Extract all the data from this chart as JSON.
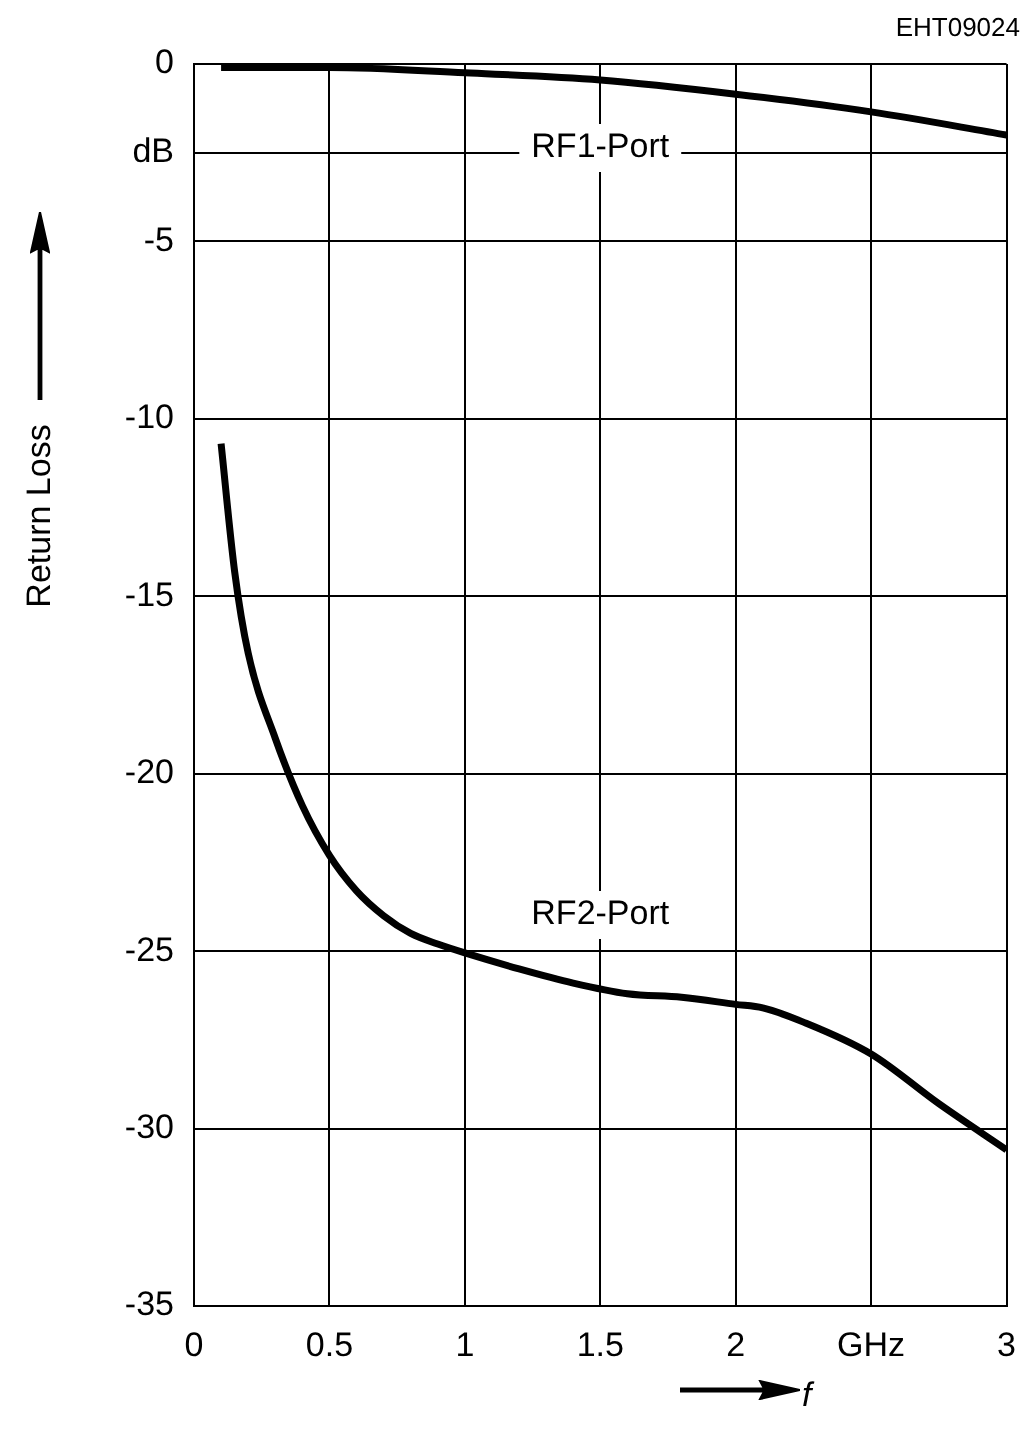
{
  "chart_data": {
    "type": "line",
    "ylabel": "Return Loss",
    "xlabel": "f",
    "annotations": [
      "EHT09024"
    ],
    "series": [
      {
        "name": "RF1-Port",
        "color": "#000000",
        "x": [
          0.1,
          0.5,
          1,
          1.5,
          2,
          2.5,
          3
        ],
        "values": [
          -0.1,
          -0.1,
          -0.25,
          -0.45,
          -0.85,
          -1.35,
          -2.0
        ]
      },
      {
        "name": "RF2-Port",
        "color": "#000000",
        "x": [
          0.1,
          0.15,
          0.2,
          0.3,
          0.4,
          0.5,
          0.6,
          0.7,
          0.8,
          0.9,
          1,
          1.2,
          1.4,
          1.6,
          1.8,
          2,
          2.1,
          2.25,
          2.5,
          2.75,
          3
        ],
        "values": [
          -10.7,
          -14.3,
          -16.6,
          -19.0,
          -20.9,
          -22.3,
          -23.3,
          -24.0,
          -24.5,
          -24.8,
          -25.05,
          -25.5,
          -25.9,
          -26.2,
          -26.3,
          -26.5,
          -26.6,
          -27.0,
          -27.9,
          -29.3,
          -30.6
        ]
      }
    ],
    "xlim": [
      0,
      3
    ],
    "xticks": [
      0,
      0.5,
      1,
      1.5,
      2,
      {
        "value": 2.5,
        "label": "GHz"
      },
      3
    ],
    "ylim": [
      -35,
      0
    ],
    "yticks": [
      0,
      {
        "value": -2.5,
        "label": "dB"
      },
      -5,
      -10,
      -15,
      -20,
      -25,
      -30,
      -35
    ],
    "grid": true,
    "legend": false,
    "marker": "none",
    "line_style": "solid"
  }
}
